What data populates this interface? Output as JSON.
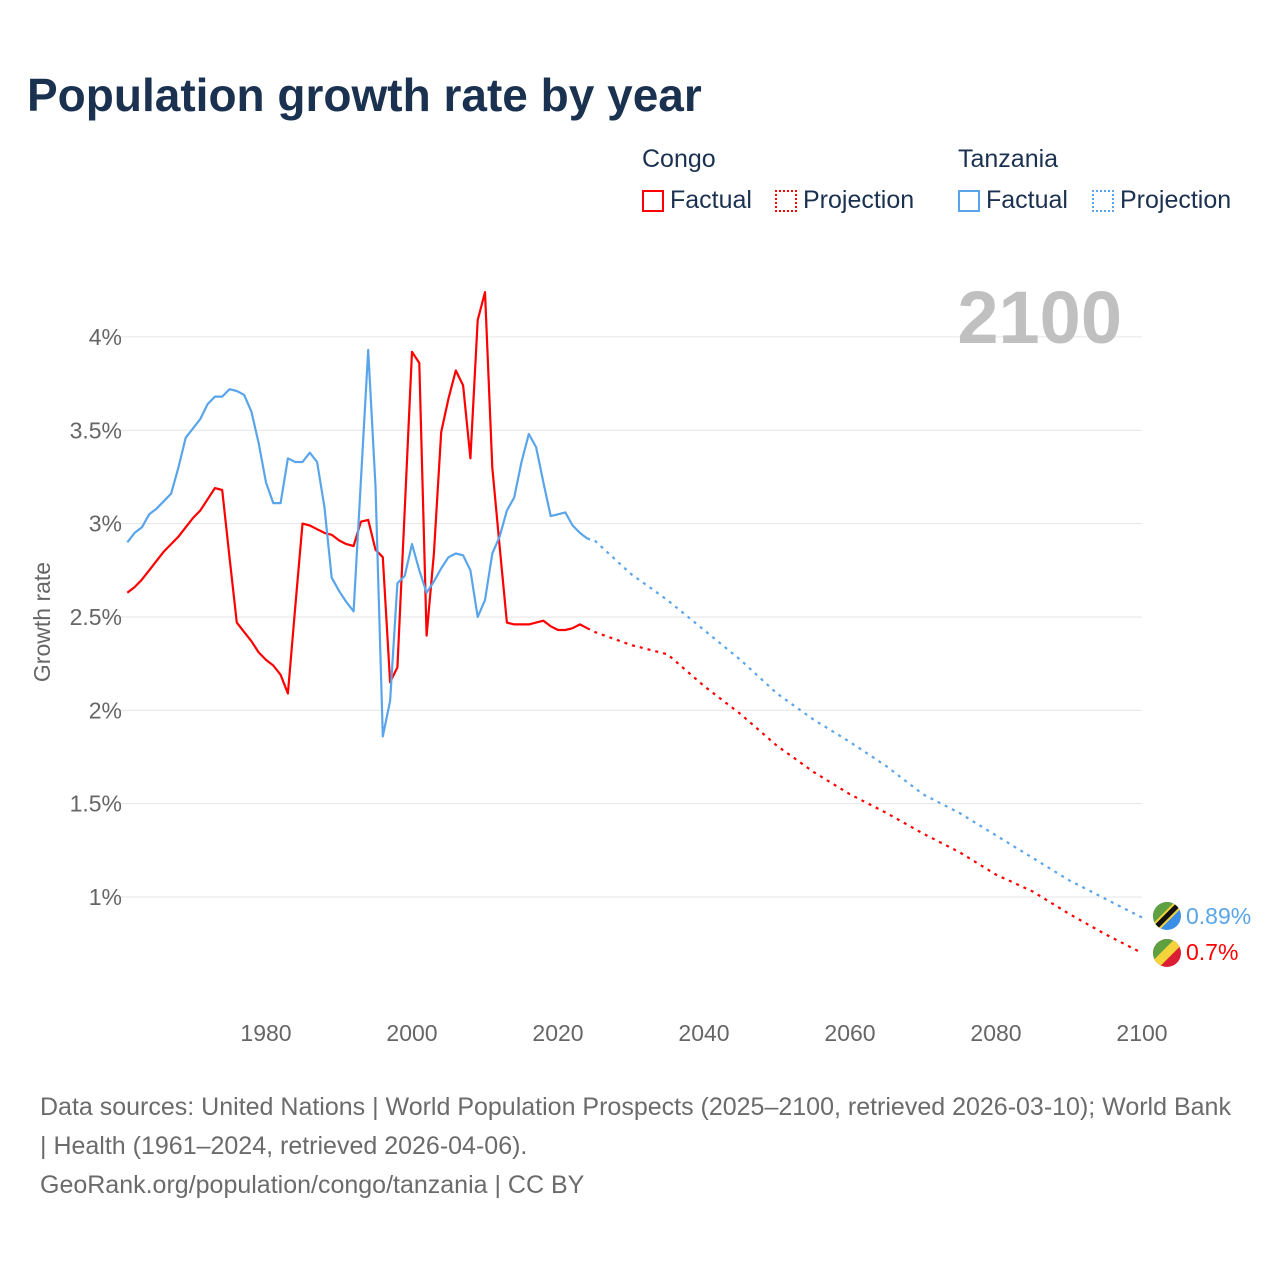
{
  "title": "Population growth rate by year",
  "legend": {
    "groups": [
      {
        "name": "Congo",
        "factual": "Factual",
        "projection": "Projection",
        "color": "#ff0000"
      },
      {
        "name": "Tanzania",
        "factual": "Factual",
        "projection": "Projection",
        "color": "#5aa5ea"
      }
    ]
  },
  "footer": {
    "sources": "Data sources: United Nations | World Population Prospects (2025–2100, retrieved 2026-03-10); World Bank | Health (1961–2024, retrieved 2026-04-06).",
    "credit": "GeoRank.org/population/congo/tanzania | CC BY"
  },
  "chart_data": {
    "type": "line",
    "title": "Population growth rate by year",
    "year_label": "2100",
    "xlabel": "",
    "ylabel": "Growth rate",
    "xlim": [
      1961,
      2100
    ],
    "ylim": [
      0.6,
      4.35
    ],
    "x_ticks": [
      1980,
      2000,
      2020,
      2040,
      2060,
      2080,
      2100
    ],
    "y_ticks": [
      1,
      1.5,
      2,
      2.5,
      3,
      3.5,
      4
    ],
    "y_tick_labels": [
      "1%",
      "1.5%",
      "2%",
      "2.5%",
      "3%",
      "3.5%",
      "4%"
    ],
    "grid": true,
    "legend_position": "top-right",
    "series": [
      {
        "name": "Congo",
        "color": "#ff0000",
        "end_label": "0.7%",
        "factual": {
          "start_year": 1961,
          "values": [
            2.63,
            2.66,
            2.7,
            2.75,
            2.8,
            2.85,
            2.89,
            2.93,
            2.98,
            3.03,
            3.07,
            3.13,
            3.19,
            3.18,
            2.82,
            2.47,
            2.42,
            2.37,
            2.31,
            2.27,
            2.24,
            2.19,
            2.09,
            2.55,
            3.0,
            2.99,
            2.97,
            2.95,
            2.94,
            2.91,
            2.89,
            2.88,
            3.01,
            3.02,
            2.86,
            2.82,
            2.15,
            2.23,
            3.07,
            3.92,
            3.86,
            2.4,
            2.84,
            3.49,
            3.67,
            3.82,
            3.74,
            3.35,
            4.09,
            4.24,
            3.3,
            2.88,
            2.47,
            2.46,
            2.46,
            2.46,
            2.47,
            2.48,
            2.45,
            2.43,
            2.43,
            2.44,
            2.46,
            2.44
          ]
        },
        "projection": {
          "x": [
            2024,
            2025,
            2030,
            2035,
            2040,
            2045,
            2050,
            2055,
            2060,
            2065,
            2070,
            2075,
            2080,
            2085,
            2090,
            2095,
            2100
          ],
          "values": [
            2.44,
            2.42,
            2.35,
            2.3,
            2.13,
            1.98,
            1.81,
            1.67,
            1.55,
            1.45,
            1.34,
            1.24,
            1.12,
            1.03,
            0.91,
            0.8,
            0.7
          ]
        }
      },
      {
        "name": "Tanzania",
        "color": "#5aa5ea",
        "end_label": "0.89%",
        "factual": {
          "start_year": 1961,
          "values": [
            2.9,
            2.95,
            2.98,
            3.05,
            3.08,
            3.12,
            3.16,
            3.3,
            3.46,
            3.51,
            3.56,
            3.64,
            3.68,
            3.68,
            3.72,
            3.71,
            3.69,
            3.6,
            3.43,
            3.22,
            3.11,
            3.11,
            3.35,
            3.33,
            3.33,
            3.38,
            3.33,
            3.09,
            2.71,
            2.64,
            2.58,
            2.53,
            3.23,
            3.93,
            3.2,
            1.86,
            2.05,
            2.68,
            2.72,
            2.89,
            2.75,
            2.63,
            2.69,
            2.76,
            2.82,
            2.84,
            2.83,
            2.75,
            2.5,
            2.59,
            2.84,
            2.93,
            3.07,
            3.14,
            3.33,
            3.48,
            3.41,
            3.22,
            3.04,
            3.05,
            3.06,
            2.99,
            2.95,
            2.92
          ]
        },
        "projection": {
          "x": [
            2024,
            2025,
            2030,
            2035,
            2040,
            2045,
            2050,
            2055,
            2060,
            2065,
            2070,
            2075,
            2080,
            2085,
            2090,
            2095,
            2100
          ],
          "values": [
            2.92,
            2.91,
            2.73,
            2.59,
            2.43,
            2.27,
            2.09,
            1.95,
            1.83,
            1.7,
            1.55,
            1.45,
            1.33,
            1.21,
            1.09,
            0.99,
            0.89
          ]
        }
      }
    ]
  }
}
